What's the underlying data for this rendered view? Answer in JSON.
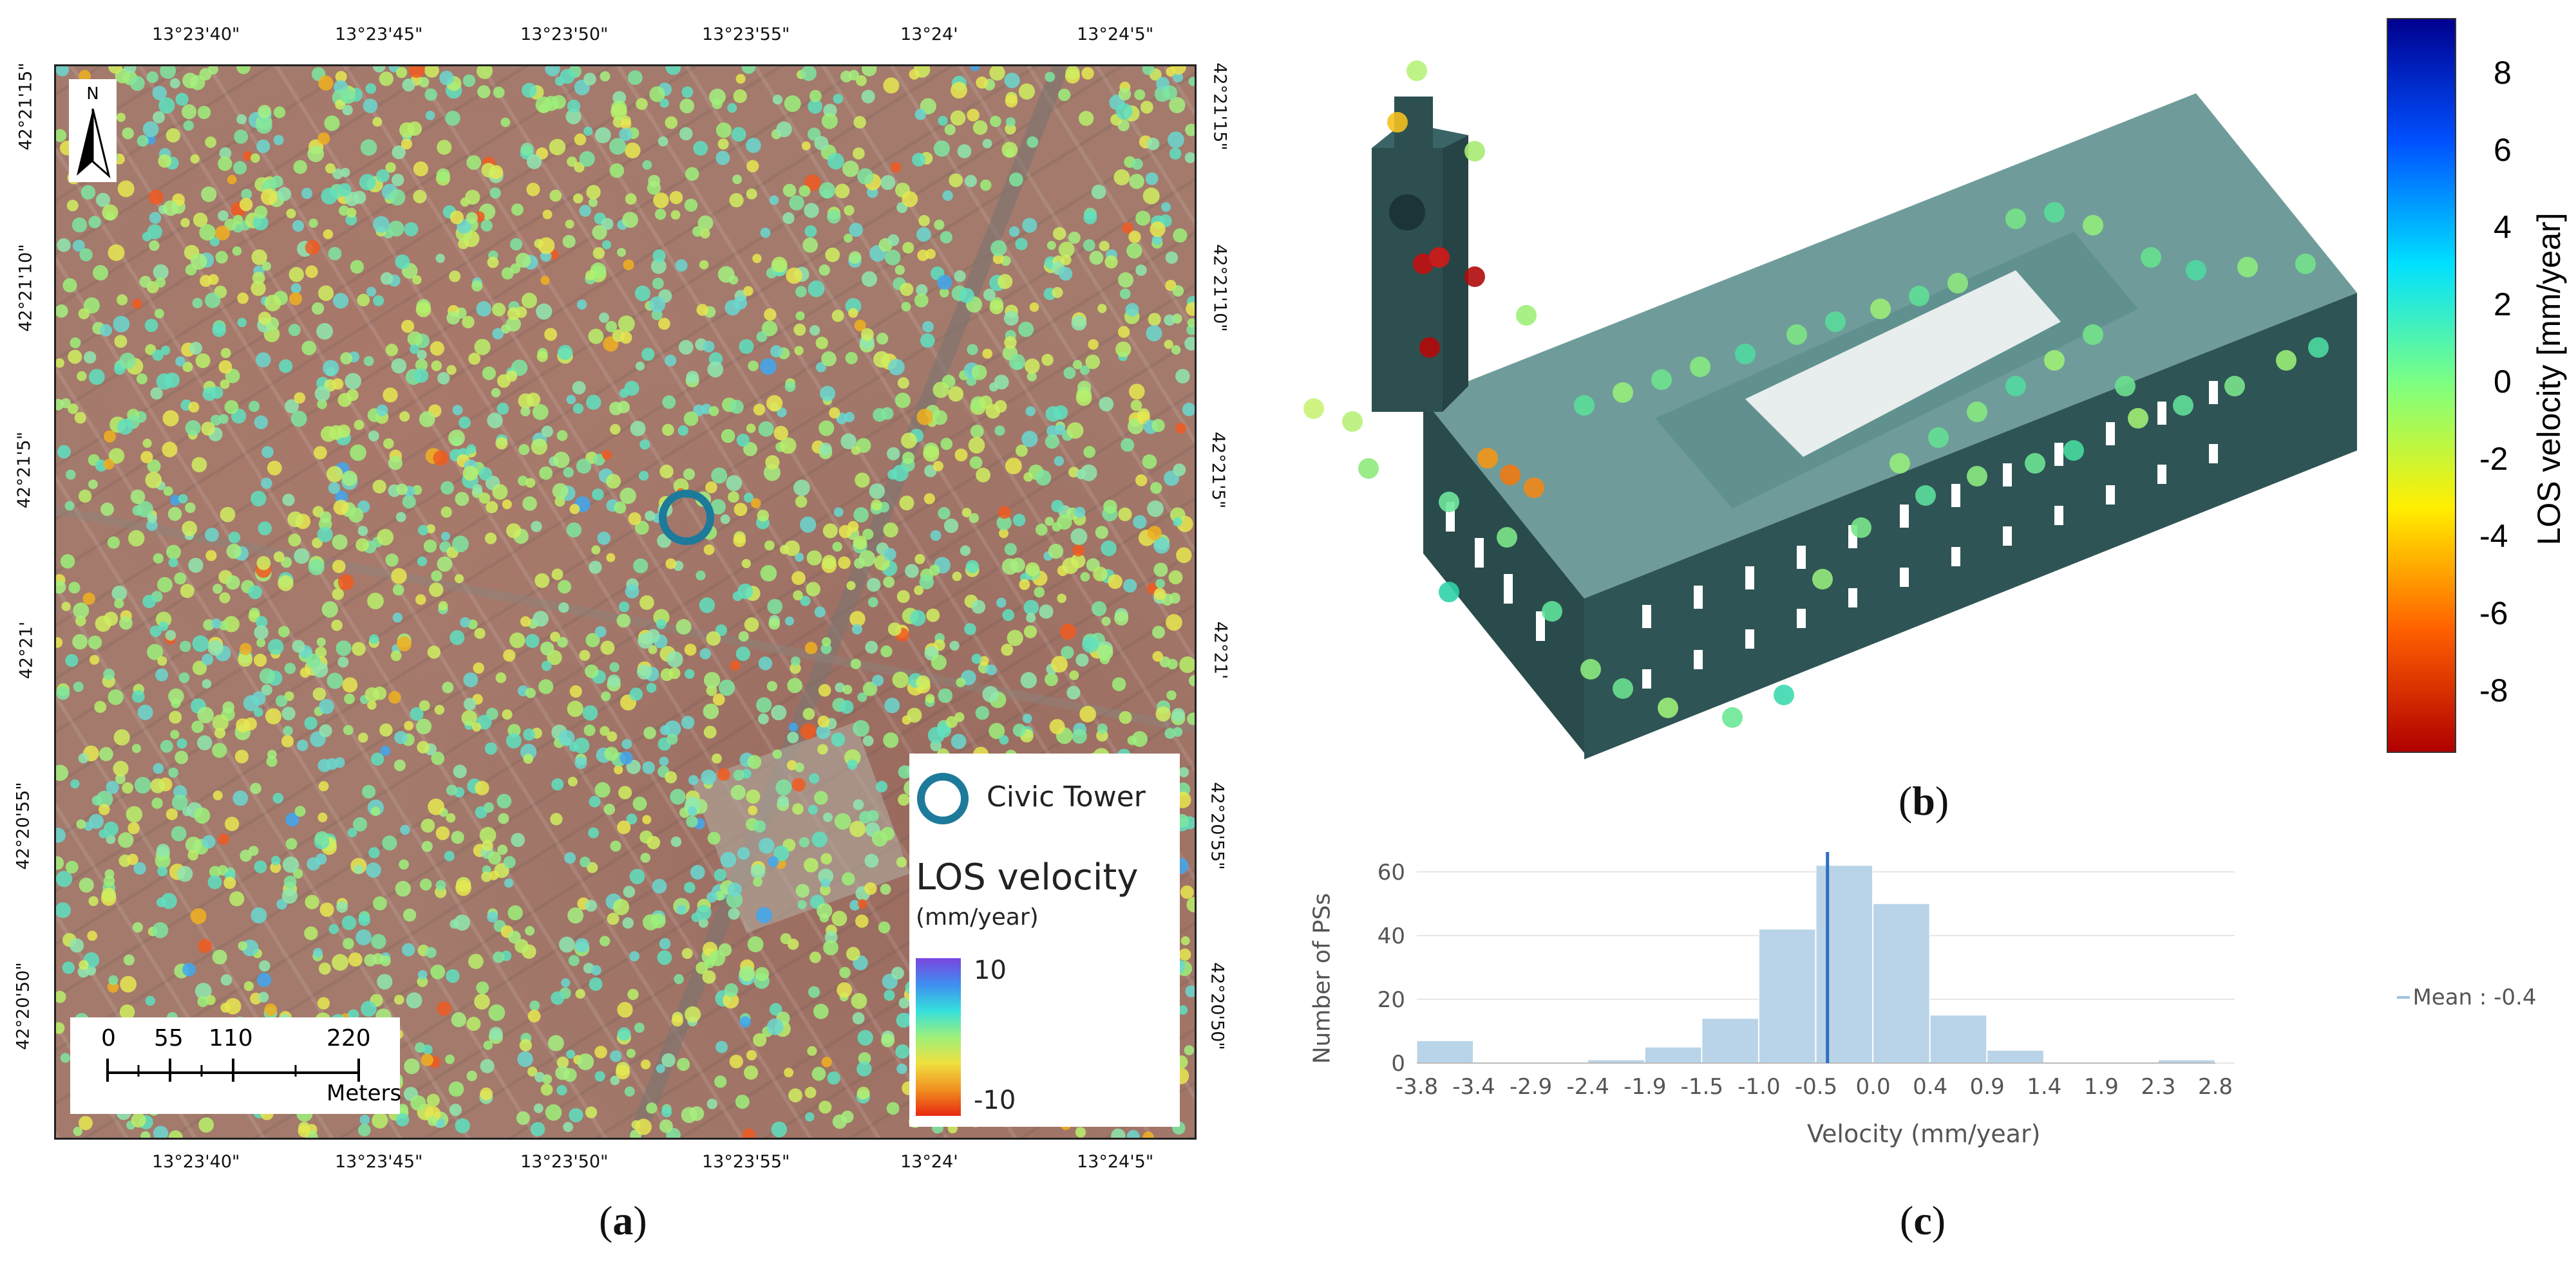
{
  "panels": {
    "a": {
      "label_open": "(",
      "label_letter": "a",
      "label_close": ")"
    },
    "b": {
      "label_open": "(",
      "label_letter": "b",
      "label_close": ")"
    },
    "c": {
      "label_open": "(",
      "label_letter": "c",
      "label_close": ")"
    }
  },
  "map": {
    "top_longitudes": [
      "13°23'40\"",
      "13°23'45\"",
      "13°23'50\"",
      "13°23'55\"",
      "13°24'",
      "13°24'5\""
    ],
    "bottom_longitudes": [
      "13°23'40\"",
      "13°23'45\"",
      "13°23'50\"",
      "13°23'55\"",
      "13°24'",
      "13°24'5\""
    ],
    "left_latitudes": [
      "42°21'15\"",
      "42°21'10\"",
      "42°21'5\"",
      "42°21'",
      "42°20'55\"",
      "42°20'50\""
    ],
    "right_latitudes": [
      "42°21'15\"",
      "42°21'10\"",
      "42°21'5\"",
      "42°21'",
      "42°20'55\"",
      "42°20'50\""
    ],
    "north_label": "N",
    "scale_ticks": [
      "0",
      "55",
      "110",
      "220"
    ],
    "scale_unit": "Meters",
    "legend": {
      "marker_label": "Civic Tower",
      "title": "LOS velocity",
      "unit": "(mm/year)",
      "max_label": "10",
      "min_label": "-10"
    },
    "colors": {
      "circle": "#1d7a9a",
      "gradient": [
        "#7a45e0",
        "#3f8ef0",
        "#35e0dc",
        "#9ef07a",
        "#f0e040",
        "#f09020",
        "#e82810"
      ]
    }
  },
  "model3d": {
    "colorbar_title": "LOS velocity [mm/year]",
    "colorbar_ticks": [
      "8",
      "6",
      "4",
      "2",
      "0",
      "-2",
      "-4",
      "-6",
      "-8"
    ],
    "colorbar_gradient": [
      "#00008f",
      "#0050ff",
      "#00e0ff",
      "#7fff7f",
      "#ffef00",
      "#ff6000",
      "#b00000"
    ]
  },
  "chart_data": {
    "type": "bar",
    "title": "",
    "xlabel": "Velocity (mm/year)",
    "ylabel": "Number of PSs",
    "bin_edges": [
      -3.8,
      -3.4,
      -2.9,
      -2.4,
      -1.9,
      -1.5,
      -1.0,
      -0.5,
      0.0,
      0.4,
      0.9,
      1.4,
      1.9,
      2.3,
      2.8
    ],
    "tick_labels": [
      "-3.8",
      "-3.4",
      "-2.9",
      "-2.4",
      "-1.9",
      "-1.5",
      "-1.0",
      "-0.5",
      "0.0",
      "0.4",
      "0.9",
      "1.4",
      "1.9",
      "2.3",
      "2.8"
    ],
    "values": [
      7,
      0,
      0,
      1,
      5,
      14,
      42,
      62,
      50,
      15,
      4,
      0,
      0,
      1
    ],
    "ylim": [
      0,
      65
    ],
    "yticks": [
      "0",
      "20",
      "40",
      "60"
    ],
    "mean": -0.4,
    "legend_label": "Mean : -0.4",
    "bar_color": "#b9d4e8",
    "mean_color": "#2f6fc0"
  }
}
